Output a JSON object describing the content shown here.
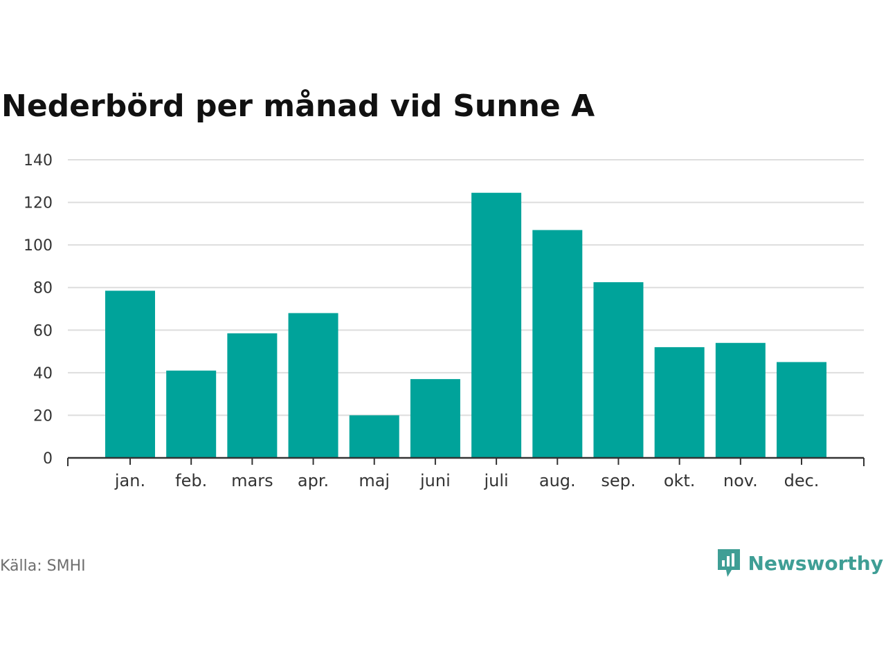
{
  "colors": {
    "bar": "#00a39a",
    "grid": "#dddddd",
    "axis": "#333333",
    "brand": "#3f9e95"
  },
  "footer": {
    "source": "Källa: SMHI",
    "brand_name": "Newsworthy",
    "brand_icon": "newsworthy-logo-icon"
  },
  "chart_data": {
    "type": "bar",
    "title": "Nederbörd per månad vid Sunne A",
    "xlabel": "",
    "ylabel": "",
    "categories": [
      "jan.",
      "feb.",
      "mars",
      "apr.",
      "maj",
      "juni",
      "juli",
      "aug.",
      "sep.",
      "okt.",
      "nov.",
      "dec."
    ],
    "values": [
      78.5,
      41,
      58.5,
      68,
      20,
      37,
      124.5,
      107,
      82.5,
      52,
      54,
      45
    ],
    "ylim": [
      0,
      140
    ],
    "yticks": [
      0,
      20,
      40,
      60,
      80,
      100,
      120,
      140
    ],
    "grid": true,
    "legend": "none"
  }
}
